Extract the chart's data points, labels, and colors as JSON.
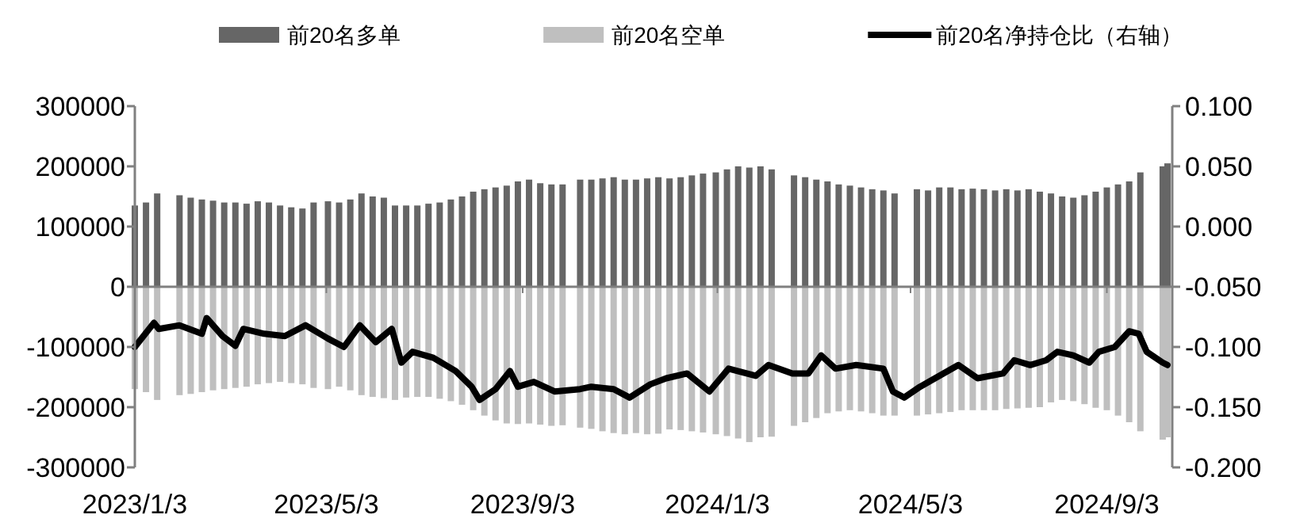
{
  "chart_data": {
    "type": "bar",
    "stacked": true,
    "legend": "top",
    "xlim": [
      "2023-01-03",
      "2024-10-14"
    ],
    "xticks": [
      {
        "value": "2023-01-03",
        "label": "2023/1/3"
      },
      {
        "value": "2023-05-03",
        "label": "2023/5/3"
      },
      {
        "value": "2023-09-03",
        "label": "2023/9/3"
      },
      {
        "value": "2024-01-03",
        "label": "2024/1/3"
      },
      {
        "value": "2024-05-03",
        "label": "2024/5/3"
      },
      {
        "value": "2024-09-03",
        "label": "2024/9/3"
      }
    ],
    "ylim": [
      -300000,
      300000
    ],
    "yticks": [
      -300000,
      -200000,
      -100000,
      0,
      100000,
      200000,
      300000
    ],
    "y2lim": [
      -0.2,
      0.1
    ],
    "y2ticks": [
      {
        "value": -0.2,
        "label": "-0.200"
      },
      {
        "value": -0.15,
        "label": "-0.150"
      },
      {
        "value": -0.1,
        "label": "-0.100"
      },
      {
        "value": -0.05,
        "label": "-0.050"
      },
      {
        "value": 0,
        "label": "0.000"
      },
      {
        "value": 0.05,
        "label": "0.050"
      },
      {
        "value": 0.1,
        "label": "0.100"
      }
    ],
    "x": [
      "2023-01-03",
      "2023-01-10",
      "2023-01-17",
      "2023-01-31",
      "2023-02-07",
      "2023-02-14",
      "2023-02-21",
      "2023-02-28",
      "2023-03-07",
      "2023-03-14",
      "2023-03-21",
      "2023-03-28",
      "2023-04-04",
      "2023-04-11",
      "2023-04-18",
      "2023-04-25",
      "2023-05-04",
      "2023-05-11",
      "2023-05-18",
      "2023-05-25",
      "2023-06-01",
      "2023-06-08",
      "2023-06-15",
      "2023-06-22",
      "2023-06-29",
      "2023-07-06",
      "2023-07-13",
      "2023-07-20",
      "2023-07-27",
      "2023-08-03",
      "2023-08-10",
      "2023-08-17",
      "2023-08-24",
      "2023-08-31",
      "2023-09-07",
      "2023-09-14",
      "2023-09-21",
      "2023-09-28",
      "2023-10-09",
      "2023-10-16",
      "2023-10-23",
      "2023-10-30",
      "2023-11-06",
      "2023-11-13",
      "2023-11-20",
      "2023-11-27",
      "2023-12-04",
      "2023-12-11",
      "2023-12-18",
      "2023-12-25",
      "2024-01-02",
      "2024-01-09",
      "2024-01-16",
      "2024-01-23",
      "2024-01-30",
      "2024-02-06",
      "2024-02-20",
      "2024-02-27",
      "2024-03-05",
      "2024-03-12",
      "2024-03-19",
      "2024-03-26",
      "2024-04-02",
      "2024-04-09",
      "2024-04-16",
      "2024-04-23",
      "2024-05-07",
      "2024-05-14",
      "2024-05-21",
      "2024-05-28",
      "2024-06-04",
      "2024-06-11",
      "2024-06-18",
      "2024-06-25",
      "2024-07-02",
      "2024-07-09",
      "2024-07-16",
      "2024-07-23",
      "2024-07-30",
      "2024-08-06",
      "2024-08-13",
      "2024-08-20",
      "2024-08-27",
      "2024-09-03",
      "2024-09-10",
      "2024-09-17",
      "2024-09-24",
      "2024-10-08",
      "2024-10-11"
    ],
    "series": [
      {
        "name": "前20名多单",
        "type": "bar",
        "color": "#666666",
        "values": [
          135000,
          140000,
          155000,
          152000,
          148000,
          145000,
          143000,
          140000,
          140000,
          138000,
          142000,
          140000,
          135000,
          132000,
          130000,
          140000,
          142000,
          140000,
          145000,
          155000,
          150000,
          148000,
          135000,
          135000,
          135000,
          138000,
          140000,
          145000,
          150000,
          158000,
          162000,
          165000,
          168000,
          175000,
          178000,
          172000,
          170000,
          170000,
          178000,
          178000,
          180000,
          182000,
          178000,
          178000,
          180000,
          182000,
          180000,
          182000,
          185000,
          188000,
          190000,
          195000,
          200000,
          198000,
          200000,
          195000,
          185000,
          182000,
          178000,
          175000,
          170000,
          168000,
          165000,
          162000,
          160000,
          155000,
          162000,
          160000,
          165000,
          165000,
          162000,
          163000,
          162000,
          160000,
          162000,
          160000,
          162000,
          158000,
          155000,
          150000,
          148000,
          152000,
          158000,
          165000,
          170000,
          175000,
          190000,
          200000,
          205000
        ]
      },
      {
        "name": "前20名空单",
        "type": "bar",
        "color": "#bfbfbf",
        "values": [
          -170000,
          -175000,
          -188000,
          -180000,
          -178000,
          -175000,
          -172000,
          -170000,
          -168000,
          -166000,
          -162000,
          -160000,
          -158000,
          -160000,
          -162000,
          -168000,
          -170000,
          -166000,
          -172000,
          -180000,
          -183000,
          -185000,
          -188000,
          -184000,
          -183000,
          -183000,
          -186000,
          -190000,
          -196000,
          -205000,
          -214000,
          -222000,
          -227000,
          -228000,
          -227000,
          -229000,
          -231000,
          -230000,
          -234000,
          -236000,
          -240000,
          -243000,
          -245000,
          -243000,
          -245000,
          -244000,
          -237000,
          -238000,
          -240000,
          -242000,
          -245000,
          -248000,
          -252000,
          -258000,
          -250000,
          -249000,
          -231000,
          -225000,
          -218000,
          -210000,
          -207000,
          -205000,
          -207000,
          -210000,
          -214000,
          -214000,
          -214000,
          -212000,
          -210000,
          -208000,
          -205000,
          -205000,
          -205000,
          -205000,
          -203000,
          -202000,
          -201000,
          -200000,
          -192000,
          -188000,
          -190000,
          -195000,
          -201000,
          -205000,
          -214000,
          -225000,
          -240000,
          -254000,
          -250000
        ]
      },
      {
        "name": "前20名净持仓比（右轴）",
        "type": "line",
        "axis": "y2",
        "color": "#000000",
        "x": [
          "2023-01-03",
          "2023-01-15",
          "2023-01-18",
          "2023-01-31",
          "2023-02-14",
          "2023-02-17",
          "2023-02-27",
          "2023-03-07",
          "2023-03-12",
          "2023-03-25",
          "2023-04-07",
          "2023-04-20",
          "2023-05-04",
          "2023-05-14",
          "2023-05-24",
          "2023-06-03",
          "2023-06-13",
          "2023-06-19",
          "2023-06-26",
          "2023-07-09",
          "2023-07-23",
          "2023-08-02",
          "2023-08-07",
          "2023-08-17",
          "2023-08-26",
          "2023-08-31",
          "2023-09-10",
          "2023-09-23",
          "2023-10-09",
          "2023-10-16",
          "2023-10-30",
          "2023-11-09",
          "2023-11-22",
          "2023-12-02",
          "2023-12-15",
          "2023-12-29",
          "2024-01-10",
          "2024-01-27",
          "2024-02-04",
          "2024-02-19",
          "2024-02-29",
          "2024-03-08",
          "2024-03-17",
          "2024-03-30",
          "2024-04-16",
          "2024-04-22",
          "2024-04-29",
          "2024-05-09",
          "2024-05-21",
          "2024-06-02",
          "2024-06-14",
          "2024-06-30",
          "2024-07-07",
          "2024-07-17",
          "2024-07-27",
          "2024-08-03",
          "2024-08-13",
          "2024-08-23",
          "2024-08-29",
          "2024-09-08",
          "2024-09-17",
          "2024-09-23",
          "2024-09-28",
          "2024-10-08",
          "2024-10-11"
        ],
        "values": [
          -0.1,
          -0.08,
          -0.085,
          -0.082,
          -0.089,
          -0.076,
          -0.091,
          -0.099,
          -0.085,
          -0.089,
          -0.091,
          -0.082,
          -0.093,
          -0.1,
          -0.082,
          -0.096,
          -0.085,
          -0.113,
          -0.104,
          -0.109,
          -0.12,
          -0.133,
          -0.144,
          -0.135,
          -0.12,
          -0.133,
          -0.129,
          -0.137,
          -0.135,
          -0.133,
          -0.135,
          -0.142,
          -0.131,
          -0.126,
          -0.122,
          -0.137,
          -0.118,
          -0.124,
          -0.115,
          -0.122,
          -0.122,
          -0.107,
          -0.118,
          -0.115,
          -0.118,
          -0.137,
          -0.142,
          -0.133,
          -0.124,
          -0.115,
          -0.126,
          -0.122,
          -0.111,
          -0.115,
          -0.111,
          -0.104,
          -0.107,
          -0.113,
          -0.104,
          -0.1,
          -0.087,
          -0.089,
          -0.104,
          -0.113,
          -0.115
        ]
      }
    ]
  }
}
